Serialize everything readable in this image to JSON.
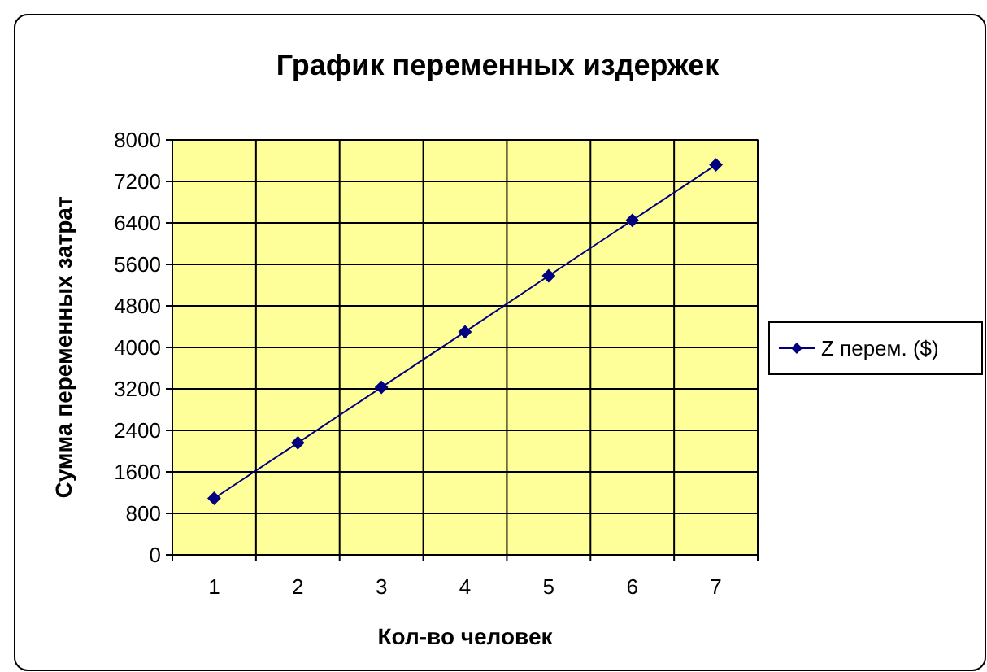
{
  "chart_data": {
    "type": "line",
    "title": "График переменных издержек",
    "xlabel": "Кол-во человек",
    "ylabel": "Сумма переменных затрат",
    "categories": [
      "1",
      "2",
      "3",
      "4",
      "5",
      "6",
      "7"
    ],
    "series": [
      {
        "name": "Z перем. ($)",
        "color": "#000080",
        "values": [
          1090,
          2160,
          3230,
          4300,
          5380,
          6450,
          7520
        ]
      }
    ],
    "ylim": [
      0,
      8000
    ],
    "yticks": [
      0,
      800,
      1600,
      2400,
      3200,
      4000,
      4800,
      5600,
      6400,
      7200,
      8000
    ],
    "grid": true,
    "legend": "right",
    "marker": "diamond",
    "line_style": "solid"
  }
}
